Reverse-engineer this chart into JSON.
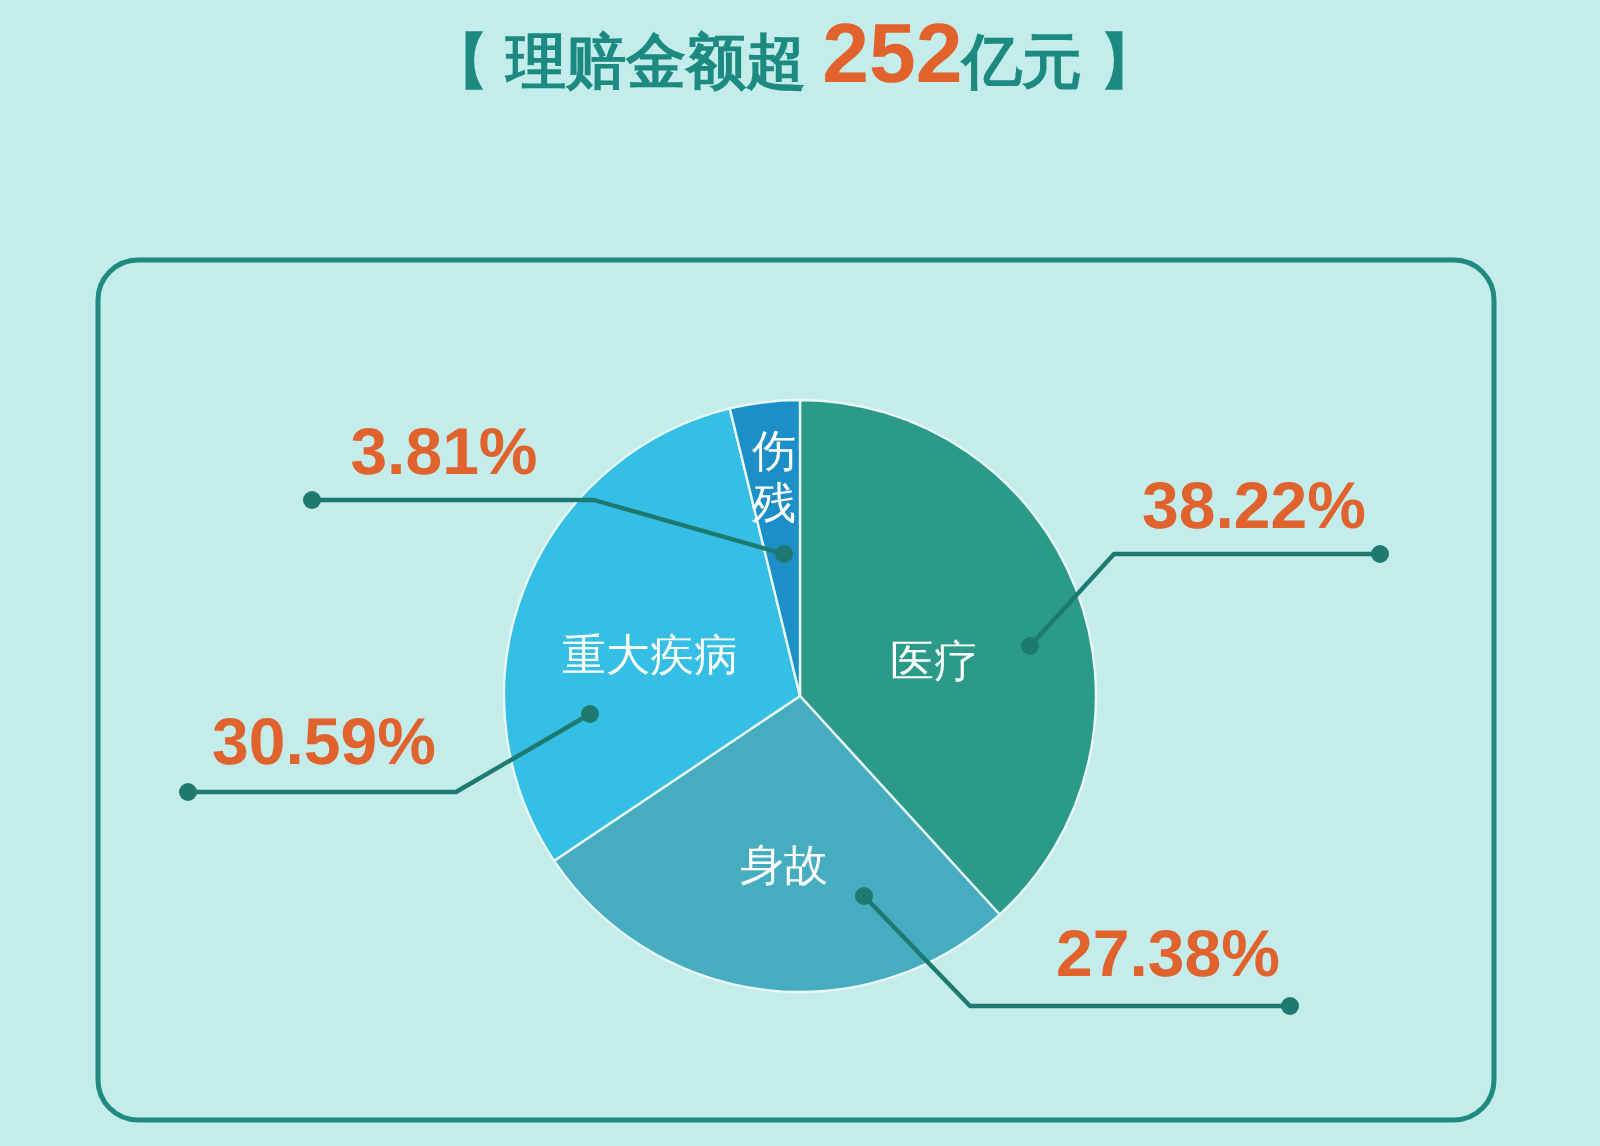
{
  "chart_data": {
    "type": "pie",
    "title": "【 理赔金额超 252亿元 】",
    "categories": [
      "医疗",
      "身故",
      "重大疾病",
      "伤残"
    ],
    "values": [
      38.22,
      27.38,
      30.59,
      3.81
    ],
    "colors": [
      "#2b9a89",
      "#45adbf",
      "#35bfe4",
      "#1b8fc6"
    ],
    "value_labels": [
      "38.22%",
      "27.38%",
      "30.59%",
      "3.81%"
    ]
  }
}
